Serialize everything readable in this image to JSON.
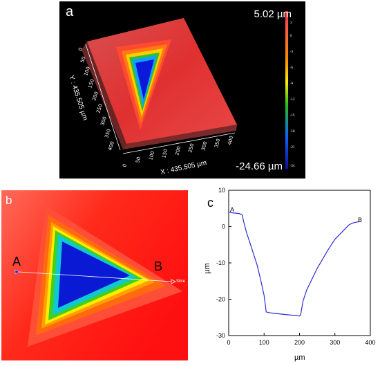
{
  "panel_a": {
    "letter": "a",
    "max_label": "5.02 µm",
    "min_label": "-24.66 µm",
    "x_axis_label": "X : 435.505 µm",
    "y_axis_label": "Y : 435.505 µm",
    "x_ticks": [
      "0",
      "50",
      "100",
      "150",
      "200",
      "250",
      "300",
      "350",
      "400"
    ],
    "y_ticks": [
      "0",
      "50",
      "100",
      "150",
      "200",
      "250",
      "300",
      "350",
      "400"
    ],
    "colorbar_ticks": [
      "3",
      "0",
      "-3",
      "-6",
      "-9",
      "-12",
      "-15",
      "-18",
      "-21",
      "-24"
    ]
  },
  "panel_b": {
    "letter": "b",
    "point_a": "A",
    "point_b": "B",
    "slice_label": "Slice"
  },
  "panel_c": {
    "letter": "c",
    "point_a": "A",
    "point_b": "B"
  },
  "chart_data": {
    "type": "line",
    "title": "",
    "xlabel": "µm",
    "ylabel": "µm",
    "xlim": [
      0,
      400
    ],
    "ylim": [
      -30,
      10
    ],
    "xticks": [
      0,
      100,
      200,
      300,
      400
    ],
    "yticks": [
      10,
      0,
      -10,
      -20,
      -30
    ],
    "series": [
      {
        "color": "#2b2bd4",
        "x": [
          0,
          10,
          20,
          30,
          38,
          42,
          50,
          60,
          70,
          80,
          90,
          100,
          106,
          120,
          140,
          160,
          180,
          200,
          203,
          210,
          220,
          235,
          250,
          265,
          280,
          290,
          300,
          310,
          320,
          330,
          340,
          350,
          360,
          370
        ],
        "y": [
          4,
          3.8,
          3.7,
          3.6,
          3.2,
          1.5,
          -1.5,
          -4.5,
          -7.5,
          -10.5,
          -14.5,
          -19,
          -23.5,
          -23.8,
          -24,
          -24.2,
          -24.4,
          -24.6,
          -24.4,
          -20.5,
          -17.5,
          -14.5,
          -11.5,
          -9,
          -6.5,
          -5,
          -3.5,
          -2.5,
          -1.5,
          -0.5,
          0.5,
          1,
          1.2,
          1.4
        ]
      }
    ]
  }
}
